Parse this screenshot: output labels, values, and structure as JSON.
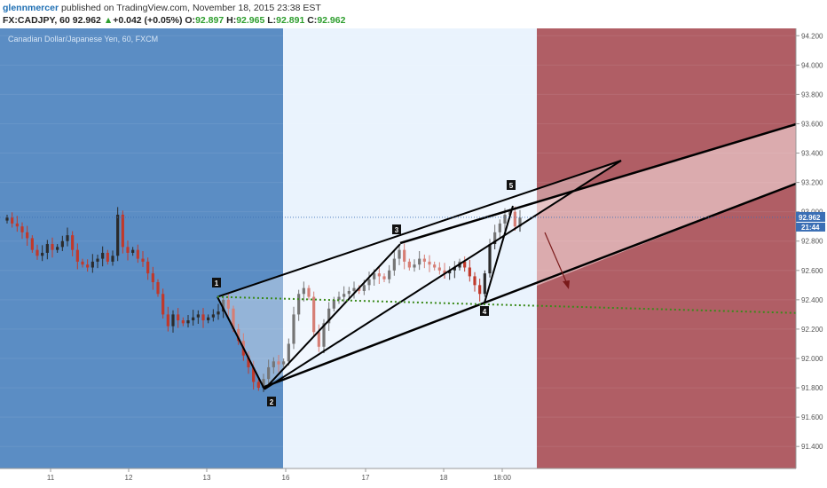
{
  "header": {
    "author": "glennmercer",
    "published_text": " published on TradingView.com, November 18, 2015 23:38 EST",
    "symbol_line": "FX:CADJPY, 60",
    "last": "92.962",
    "change": "+0.042 (+0.05%)",
    "o_label": "O:",
    "o_value": "92.897",
    "h_label": "H:",
    "h_value": "92.965",
    "l_label": "L:",
    "l_value": "92.891",
    "c_label": "C:",
    "c_value": "92.962"
  },
  "instrument_title": "Canadian Dollar/Japanese Yen, 60, FXCM",
  "price_tag": {
    "value": "92.962",
    "countdown": "21:44"
  },
  "wave_labels": [
    "1",
    "2",
    "3",
    "4",
    "5"
  ],
  "colors": {
    "zone_blue": "#5b8dc4",
    "zone_white": "#eaf3fd",
    "zone_red": "#b05e65",
    "candle_up": "#2b2b2b",
    "candle_down": "#c0392b",
    "price_line": "#3b6fb5",
    "dotted_trend": "#3a8a1a"
  },
  "chart_data": {
    "type": "candlestick",
    "title": "Canadian Dollar/Japanese Yen, 60, FXCM",
    "ylim": [
      91.25,
      94.25
    ],
    "y_ticks": [
      "94.200",
      "94.000",
      "93.800",
      "93.600",
      "93.400",
      "93.200",
      "93.000",
      "92.800",
      "92.600",
      "92.400",
      "92.200",
      "92.000",
      "91.800",
      "91.600",
      "91.400"
    ],
    "x_ticks": [
      "11",
      "12",
      "13",
      "16",
      "17",
      "18",
      "18:00"
    ],
    "last_price": 92.962,
    "close_path": [
      92.96,
      92.92,
      92.9,
      92.86,
      92.82,
      92.74,
      92.7,
      92.72,
      92.78,
      92.74,
      92.76,
      92.8,
      92.84,
      92.74,
      92.66,
      92.64,
      92.62,
      92.66,
      92.68,
      92.72,
      92.66,
      92.7,
      92.98,
      92.76,
      92.72,
      92.74,
      92.68,
      92.66,
      92.58,
      92.52,
      92.44,
      92.3,
      92.22,
      92.3,
      92.26,
      92.24,
      92.26,
      92.28,
      92.3,
      92.26,
      92.28,
      92.3,
      92.32,
      92.4,
      92.34,
      92.2,
      92.12,
      92.02,
      91.94,
      91.84,
      91.8,
      91.86,
      91.94,
      91.98,
      91.96,
      91.98,
      92.1,
      92.3,
      92.44,
      92.48,
      92.42,
      92.18,
      92.08,
      92.24,
      92.34,
      92.4,
      92.42,
      92.44,
      92.46,
      92.48,
      92.46,
      92.5,
      92.54,
      92.58,
      92.56,
      92.54,
      92.6,
      92.68,
      92.74,
      92.66,
      92.62,
      92.64,
      92.68,
      92.66,
      92.64,
      92.62,
      92.6,
      92.58,
      92.6,
      92.62,
      92.66,
      92.62,
      92.56,
      92.5,
      92.44,
      92.58,
      92.78,
      92.86,
      92.92,
      92.98,
      93.0,
      92.9,
      92.96
    ],
    "annotations": {
      "zone_dividers_x": [
        "16",
        "18:00 + ~3h"
      ],
      "wave_points": [
        92.42,
        91.79,
        92.78,
        92.38,
        93.04
      ],
      "dotted_trendline": [
        92.42,
        92.31
      ],
      "arrow": "down"
    }
  }
}
